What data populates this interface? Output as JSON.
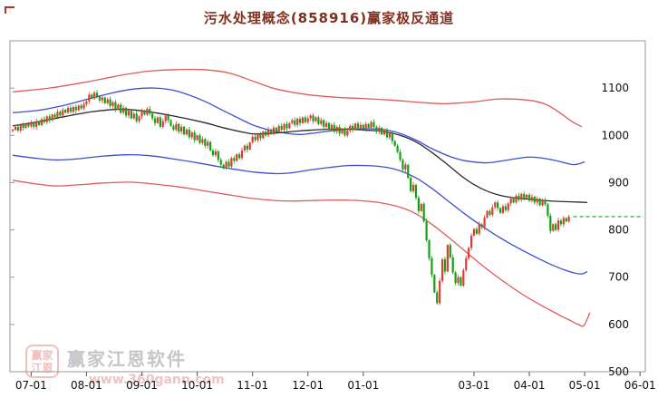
{
  "title": "污水处理概念(858916)赢家极反通道",
  "watermark": {
    "logo_line1": "赢家",
    "logo_line2": "江恩",
    "name": "赢家江恩软件",
    "url": "www.360gann.com"
  },
  "chart_data": {
    "type": "candlestick",
    "title": "污水处理概念(858916)赢家极反通道",
    "instrument": "污水处理概念",
    "code": "858916",
    "ylim": [
      500,
      1200
    ],
    "y_ticks": [
      1100,
      1000,
      900,
      800,
      700,
      600,
      500
    ],
    "x_ticks": [
      {
        "label": "07-01",
        "day": 7
      },
      {
        "label": "08-01",
        "day": 28
      },
      {
        "label": "09-01",
        "day": 49
      },
      {
        "label": "10-01",
        "day": 70
      },
      {
        "label": "11-01",
        "day": 91
      },
      {
        "label": "12-01",
        "day": 112
      },
      {
        "label": "01-01",
        "day": 133
      },
      {
        "label": "03-01",
        "day": 175
      },
      {
        "label": "04-01",
        "day": 196
      },
      {
        "label": "05-01",
        "day": 217
      },
      {
        "label": "06-01",
        "day": 238
      }
    ],
    "days_total": 240,
    "open_rule": "prev_close",
    "current_price": 828,
    "colors": {
      "up": "#dc3c34",
      "down": "#13a113",
      "price_line": "#18a018",
      "axis": "#111111",
      "border": "#999999"
    },
    "close": [
      1012,
      1018,
      1010,
      1022,
      1016,
      1024,
      1019,
      1026,
      1018,
      1030,
      1022,
      1034,
      1028,
      1040,
      1032,
      1044,
      1038,
      1050,
      1042,
      1054,
      1048,
      1058,
      1050,
      1060,
      1053,
      1063,
      1057,
      1066,
      1072,
      1086,
      1078,
      1090,
      1082,
      1074,
      1080,
      1068,
      1076,
      1062,
      1070,
      1055,
      1065,
      1048,
      1058,
      1042,
      1052,
      1036,
      1046,
      1030,
      1040,
      1052,
      1044,
      1056,
      1046,
      1036,
      1026,
      1038,
      1018,
      1030,
      1042,
      1032,
      1020,
      1012,
      1024,
      1008,
      1018,
      1002,
      1012,
      996,
      1006,
      990,
      1000,
      984,
      992,
      978,
      986,
      968,
      958,
      966,
      948,
      938,
      930,
      944,
      934,
      952,
      946,
      960,
      952,
      968,
      978,
      970,
      985,
      997,
      990,
      1002,
      994,
      1008,
      1000,
      1012,
      1006,
      1016,
      1008,
      1020,
      1012,
      1024,
      1015,
      1026,
      1032,
      1022,
      1035,
      1026,
      1038,
      1028,
      1036,
      1042,
      1030,
      1038,
      1024,
      1032,
      1018,
      1026,
      1012,
      1022,
      1008,
      1018,
      1004,
      1014,
      1000,
      1010,
      1020,
      1012,
      1025,
      1016,
      1022,
      1014,
      1024,
      1016,
      1028,
      1018,
      1008,
      1016,
      1002,
      1010,
      996,
      1004,
      988,
      978,
      965,
      948,
      928,
      938,
      910,
      882,
      895,
      868,
      840,
      855,
      818,
      778,
      740,
      705,
      668,
      645,
      692,
      738,
      712,
      768,
      742,
      710,
      688,
      700,
      682,
      715,
      740,
      762,
      788,
      802,
      792,
      812,
      806,
      826,
      840,
      832,
      848,
      858,
      846,
      836,
      850,
      842,
      856,
      866,
      858,
      872,
      864,
      876,
      868,
      874,
      862,
      870,
      858,
      866,
      852,
      862,
      854,
      830,
      798,
      812,
      800,
      820,
      812,
      825,
      818,
      828
    ],
    "channel_lines": [
      {
        "name": "upper-red-band",
        "color": "#e05a5a",
        "points": [
          [
            0,
            1092
          ],
          [
            14,
            1100
          ],
          [
            28,
            1113
          ],
          [
            42,
            1128
          ],
          [
            52,
            1136
          ],
          [
            62,
            1139
          ],
          [
            72,
            1139
          ],
          [
            82,
            1132
          ],
          [
            92,
            1113
          ],
          [
            100,
            1098
          ],
          [
            112,
            1086
          ],
          [
            124,
            1080
          ],
          [
            133,
            1078
          ],
          [
            145,
            1074
          ],
          [
            154,
            1070
          ],
          [
            164,
            1067
          ],
          [
            175,
            1071
          ],
          [
            185,
            1077
          ],
          [
            196,
            1074
          ],
          [
            202,
            1066
          ],
          [
            207,
            1050
          ],
          [
            212,
            1030
          ],
          [
            216,
            1018
          ]
        ]
      },
      {
        "name": "upper-blue-band",
        "color": "#3b4fd0",
        "points": [
          [
            0,
            1048
          ],
          [
            10,
            1053
          ],
          [
            20,
            1064
          ],
          [
            28,
            1076
          ],
          [
            38,
            1090
          ],
          [
            46,
            1098
          ],
          [
            54,
            1100
          ],
          [
            62,
            1094
          ],
          [
            72,
            1074
          ],
          [
            80,
            1052
          ],
          [
            88,
            1030
          ],
          [
            92,
            1020
          ],
          [
            100,
            1008
          ],
          [
            108,
            1002
          ],
          [
            113,
            1004
          ],
          [
            120,
            1009
          ],
          [
            127,
            1013
          ],
          [
            134,
            1014
          ],
          [
            141,
            1012
          ],
          [
            147,
            1004
          ],
          [
            153,
            990
          ],
          [
            159,
            972
          ],
          [
            166,
            955
          ],
          [
            172,
            946
          ],
          [
            180,
            942
          ],
          [
            188,
            948
          ],
          [
            196,
            954
          ],
          [
            203,
            950
          ],
          [
            208,
            944
          ],
          [
            213,
            938
          ],
          [
            217,
            944
          ]
        ]
      },
      {
        "name": "middle-black-line",
        "color": "#2a2a2a",
        "points": [
          [
            0,
            1020
          ],
          [
            10,
            1029
          ],
          [
            20,
            1040
          ],
          [
            30,
            1050
          ],
          [
            40,
            1055
          ],
          [
            49,
            1052
          ],
          [
            60,
            1042
          ],
          [
            72,
            1028
          ],
          [
            80,
            1016
          ],
          [
            88,
            1006
          ],
          [
            92,
            1003
          ],
          [
            100,
            1005
          ],
          [
            108,
            1009
          ],
          [
            113,
            1011
          ],
          [
            121,
            1013
          ],
          [
            128,
            1013
          ],
          [
            134,
            1011
          ],
          [
            141,
            1008
          ],
          [
            147,
            1000
          ],
          [
            153,
            986
          ],
          [
            159,
            964
          ],
          [
            165,
            938
          ],
          [
            170,
            915
          ],
          [
            175,
            896
          ],
          [
            180,
            882
          ],
          [
            185,
            873
          ],
          [
            190,
            868
          ],
          [
            196,
            865
          ],
          [
            202,
            862
          ],
          [
            208,
            860
          ],
          [
            214,
            859
          ],
          [
            218,
            858
          ]
        ]
      },
      {
        "name": "lower-blue-band",
        "color": "#3b4fd0",
        "points": [
          [
            0,
            958
          ],
          [
            8,
            952
          ],
          [
            16,
            948
          ],
          [
            24,
            950
          ],
          [
            34,
            956
          ],
          [
            44,
            959
          ],
          [
            52,
            957
          ],
          [
            60,
            951
          ],
          [
            68,
            944
          ],
          [
            72,
            940
          ],
          [
            80,
            932
          ],
          [
            88,
            925
          ],
          [
            92,
            922
          ],
          [
            100,
            919
          ],
          [
            106,
            921
          ],
          [
            113,
            927
          ],
          [
            120,
            932
          ],
          [
            127,
            936
          ],
          [
            134,
            936
          ],
          [
            141,
            933
          ],
          [
            147,
            925
          ],
          [
            153,
            910
          ],
          [
            159,
            888
          ],
          [
            165,
            862
          ],
          [
            171,
            836
          ],
          [
            177,
            812
          ],
          [
            183,
            790
          ],
          [
            189,
            770
          ],
          [
            195,
            752
          ],
          [
            200,
            738
          ],
          [
            205,
            725
          ],
          [
            209,
            716
          ],
          [
            213,
            709
          ],
          [
            216,
            707
          ],
          [
            218,
            712
          ]
        ]
      },
      {
        "name": "lower-red-band",
        "color": "#e05a5a",
        "points": [
          [
            0,
            905
          ],
          [
            8,
            898
          ],
          [
            16,
            893
          ],
          [
            24,
            895
          ],
          [
            34,
            899
          ],
          [
            44,
            901
          ],
          [
            52,
            898
          ],
          [
            60,
            893
          ],
          [
            68,
            887
          ],
          [
            72,
            883
          ],
          [
            80,
            876
          ],
          [
            88,
            869
          ],
          [
            92,
            866
          ],
          [
            100,
            862
          ],
          [
            106,
            861
          ],
          [
            113,
            862
          ],
          [
            120,
            863
          ],
          [
            127,
            863
          ],
          [
            134,
            861
          ],
          [
            140,
            857
          ],
          [
            147,
            848
          ],
          [
            153,
            834
          ],
          [
            159,
            812
          ],
          [
            165,
            786
          ],
          [
            171,
            758
          ],
          [
            177,
            730
          ],
          [
            183,
            704
          ],
          [
            189,
            680
          ],
          [
            195,
            658
          ],
          [
            200,
            642
          ],
          [
            204,
            630
          ],
          [
            208,
            618
          ],
          [
            211,
            610
          ],
          [
            213,
            604
          ],
          [
            215,
            599
          ],
          [
            216,
            596
          ],
          [
            217,
            600
          ],
          [
            218,
            612
          ],
          [
            219,
            625
          ]
        ]
      }
    ]
  }
}
